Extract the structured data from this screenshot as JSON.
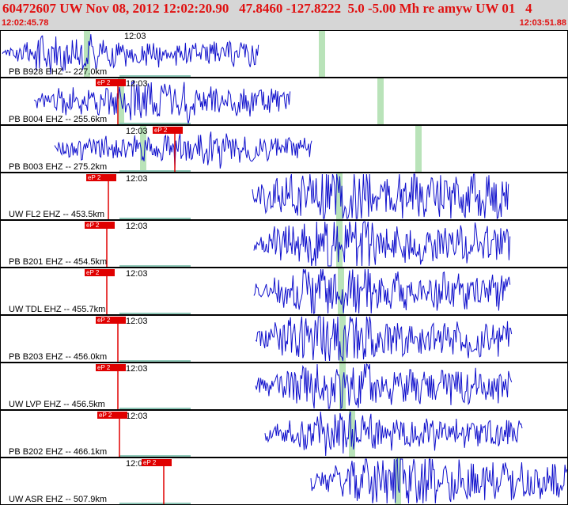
{
  "header": {
    "title": "60472607 UW Nov 08, 2012 12:02:20.90   47.8460 -127.8222  5.0 -5.00 Mh re amyw UW 01   4",
    "start_time": "12:02:45.78",
    "end_time": "12:03:51.88"
  },
  "colors": {
    "waveform": "#1010cc",
    "pick": "#e00000",
    "green_marker": "#b9e3b9",
    "header_bg": "#d6d6d6",
    "header_text": "#e01010"
  },
  "traces": [
    {
      "station": "PB B928 EHZ -- 227.0km",
      "time_label": "12:03",
      "pick_label": "",
      "has_pick": false
    },
    {
      "station": "PB B004 EHZ -- 255.6km",
      "time_label": "12:03",
      "pick_label": "eP 2",
      "has_pick": true
    },
    {
      "station": "PB B003 EHZ -- 275.2km",
      "time_label": "12:03",
      "pick_label": "eP 2",
      "has_pick": true
    },
    {
      "station": "UW FL2 EHZ -- 453.5km",
      "time_label": "12:03",
      "pick_label": "eP 2",
      "has_pick": true
    },
    {
      "station": "PB B201 EHZ -- 454.5km",
      "time_label": "12:03",
      "pick_label": "eP 2",
      "has_pick": true
    },
    {
      "station": "UW TDL EHZ -- 455.7km",
      "time_label": "12:03",
      "pick_label": "eP 2",
      "has_pick": true
    },
    {
      "station": "PB B203 EHZ -- 456.0km",
      "time_label": "12:03",
      "pick_label": "eP 2",
      "has_pick": true
    },
    {
      "station": "UW LVP EHZ -- 456.5km",
      "time_label": "12:03",
      "pick_label": "eP 2",
      "has_pick": true
    },
    {
      "station": "PB B202 EHZ -- 466.1km",
      "time_label": "12:03",
      "pick_label": "eP 2",
      "has_pick": true
    },
    {
      "station": "UW ASR EHZ -- 507.9km",
      "time_label": "12:03",
      "pick_label": "eP 2",
      "has_pick": true
    }
  ]
}
